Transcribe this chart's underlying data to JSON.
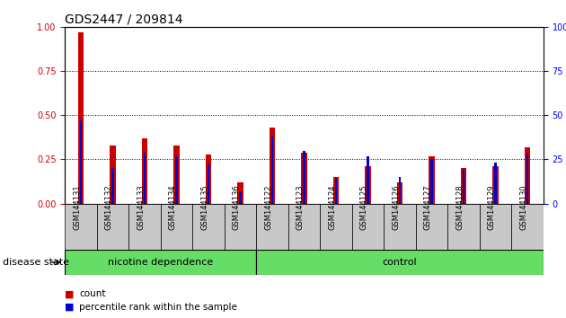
{
  "title": "GDS2447 / 209814",
  "samples": [
    "GSM144131",
    "GSM144132",
    "GSM144133",
    "GSM144134",
    "GSM144135",
    "GSM144136",
    "GSM144122",
    "GSM144123",
    "GSM144124",
    "GSM144125",
    "GSM144126",
    "GSM144127",
    "GSM144128",
    "GSM144129",
    "GSM144130"
  ],
  "count_values": [
    0.97,
    0.33,
    0.37,
    0.33,
    0.28,
    0.12,
    0.43,
    0.29,
    0.15,
    0.21,
    0.12,
    0.27,
    0.2,
    0.21,
    0.32
  ],
  "percentile_values": [
    0.47,
    0.2,
    0.29,
    0.27,
    0.22,
    0.07,
    0.38,
    0.3,
    0.14,
    0.27,
    0.15,
    0.25,
    0.19,
    0.23,
    0.29
  ],
  "count_color": "#cc0000",
  "percentile_color": "#0000cc",
  "ylim_left": [
    0,
    1.0
  ],
  "ylim_right": [
    0,
    100
  ],
  "yticks_left": [
    0,
    0.25,
    0.5,
    0.75,
    1.0
  ],
  "yticks_right": [
    0,
    25,
    50,
    75,
    100
  ],
  "group1_label": "nicotine dependence",
  "group2_label": "control",
  "group1_count": 6,
  "group2_count": 9,
  "group_label": "disease state",
  "legend_count_label": "count",
  "legend_percentile_label": "percentile rank within the sample",
  "bg_color": "#ffffff",
  "bar_bg_color": "#c8c8c8",
  "group_bg": "#66dd66",
  "red_bar_width": 0.18,
  "blue_bar_width": 0.07,
  "title_fontsize": 10,
  "tick_fontsize": 7,
  "label_fontsize": 8
}
